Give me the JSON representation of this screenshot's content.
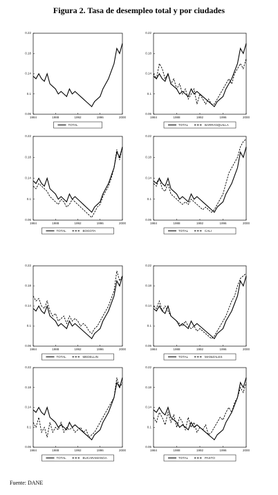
{
  "title": "Figura 2. Tasa de desempleo total y por ciudades",
  "source": "Fuente: DANE",
  "chart_data": [
    {
      "type": "line",
      "x": [
        1984,
        1984.5,
        1985,
        1985.5,
        1986,
        1986.5,
        1987,
        1987.5,
        1988,
        1988.5,
        1989,
        1989.5,
        1990,
        1990.5,
        1991,
        1991.5,
        1992,
        1992.5,
        1993,
        1993.5,
        1994,
        1994.5,
        1995,
        1995.5,
        1996,
        1996.5,
        1997,
        1997.5,
        1998,
        1998.5,
        1999,
        1999.5,
        2000
      ],
      "xlim": [
        1984,
        2000
      ],
      "xticks": [
        1984,
        1988,
        1992,
        1996,
        2000
      ],
      "ylim": [
        0.06,
        0.22
      ],
      "yticks": [
        0.06,
        0.1,
        0.14,
        0.18,
        0.22
      ],
      "series": [
        {
          "name": "TOTAL",
          "color": "#000000",
          "dash": false,
          "values": [
            0.135,
            0.13,
            0.14,
            0.13,
            0.125,
            0.14,
            0.12,
            0.115,
            0.11,
            0.1,
            0.105,
            0.1,
            0.095,
            0.11,
            0.1,
            0.105,
            0.1,
            0.095,
            0.09,
            0.085,
            0.08,
            0.075,
            0.085,
            0.09,
            0.095,
            0.11,
            0.12,
            0.13,
            0.145,
            0.16,
            0.19,
            0.18,
            0.2
          ]
        }
      ]
    },
    {
      "type": "line",
      "x": [
        1984,
        1984.5,
        1985,
        1985.5,
        1986,
        1986.5,
        1987,
        1987.5,
        1988,
        1988.5,
        1989,
        1989.5,
        1990,
        1990.5,
        1991,
        1991.5,
        1992,
        1992.5,
        1993,
        1993.5,
        1994,
        1994.5,
        1995,
        1995.5,
        1996,
        1996.5,
        1997,
        1997.5,
        1998,
        1998.5,
        1999,
        1999.5,
        2000
      ],
      "xlim": [
        1984,
        2000
      ],
      "xticks": [
        1984,
        1988,
        1992,
        1996,
        2000
      ],
      "ylim": [
        0.06,
        0.22
      ],
      "yticks": [
        0.06,
        0.1,
        0.14,
        0.18,
        0.22
      ],
      "series": [
        {
          "name": "TOTAL",
          "color": "#000000",
          "dash": false,
          "values": [
            0.135,
            0.13,
            0.14,
            0.13,
            0.125,
            0.14,
            0.12,
            0.115,
            0.11,
            0.1,
            0.105,
            0.1,
            0.095,
            0.11,
            0.1,
            0.105,
            0.1,
            0.095,
            0.09,
            0.085,
            0.08,
            0.075,
            0.085,
            0.09,
            0.095,
            0.11,
            0.12,
            0.13,
            0.145,
            0.16,
            0.19,
            0.18,
            0.2
          ]
        },
        {
          "name": "BARRANQUILLA",
          "color": "#000000",
          "dash": true,
          "values": [
            0.14,
            0.13,
            0.16,
            0.15,
            0.13,
            0.14,
            0.12,
            0.13,
            0.11,
            0.12,
            0.1,
            0.11,
            0.09,
            0.1,
            0.11,
            0.08,
            0.1,
            0.09,
            0.08,
            0.09,
            0.08,
            0.08,
            0.09,
            0.1,
            0.11,
            0.12,
            0.13,
            0.12,
            0.14,
            0.15,
            0.16,
            0.15,
            0.17
          ]
        }
      ]
    },
    {
      "type": "line",
      "x": [
        1984,
        1984.5,
        1985,
        1985.5,
        1986,
        1986.5,
        1987,
        1987.5,
        1988,
        1988.5,
        1989,
        1989.5,
        1990,
        1990.5,
        1991,
        1991.5,
        1992,
        1992.5,
        1993,
        1993.5,
        1994,
        1994.5,
        1995,
        1995.5,
        1996,
        1996.5,
        1997,
        1997.5,
        1998,
        1998.5,
        1999,
        1999.5,
        2000
      ],
      "xlim": [
        1984,
        2000
      ],
      "xticks": [
        1984,
        1988,
        1992,
        1996,
        2000
      ],
      "ylim": [
        0.06,
        0.22
      ],
      "yticks": [
        0.06,
        0.1,
        0.14,
        0.18,
        0.22
      ],
      "series": [
        {
          "name": "TOTAL",
          "color": "#000000",
          "dash": false,
          "values": [
            0.135,
            0.13,
            0.14,
            0.13,
            0.125,
            0.14,
            0.12,
            0.115,
            0.11,
            0.1,
            0.105,
            0.1,
            0.095,
            0.11,
            0.1,
            0.105,
            0.1,
            0.095,
            0.09,
            0.085,
            0.08,
            0.075,
            0.085,
            0.09,
            0.095,
            0.11,
            0.12,
            0.13,
            0.145,
            0.16,
            0.19,
            0.18,
            0.2
          ]
        },
        {
          "name": "BOGOTA",
          "color": "#000000",
          "dash": true,
          "values": [
            0.125,
            0.12,
            0.13,
            0.125,
            0.12,
            0.115,
            0.105,
            0.1,
            0.095,
            0.09,
            0.1,
            0.095,
            0.085,
            0.09,
            0.1,
            0.095,
            0.09,
            0.085,
            0.08,
            0.075,
            0.07,
            0.065,
            0.075,
            0.085,
            0.09,
            0.105,
            0.115,
            0.125,
            0.14,
            0.16,
            0.195,
            0.175,
            0.2
          ]
        }
      ]
    },
    {
      "type": "line",
      "x": [
        1984,
        1984.5,
        1985,
        1985.5,
        1986,
        1986.5,
        1987,
        1987.5,
        1988,
        1988.5,
        1989,
        1989.5,
        1990,
        1990.5,
        1991,
        1991.5,
        1992,
        1992.5,
        1993,
        1993.5,
        1994,
        1994.5,
        1995,
        1995.5,
        1996,
        1996.5,
        1997,
        1997.5,
        1998,
        1998.5,
        1999,
        1999.5,
        2000
      ],
      "xlim": [
        1984,
        2000
      ],
      "xticks": [
        1984,
        1988,
        1992,
        1996,
        2000
      ],
      "ylim": [
        0.06,
        0.22
      ],
      "yticks": [
        0.06,
        0.1,
        0.14,
        0.18,
        0.22
      ],
      "series": [
        {
          "name": "TOTAL",
          "color": "#000000",
          "dash": false,
          "values": [
            0.135,
            0.13,
            0.14,
            0.13,
            0.125,
            0.14,
            0.12,
            0.115,
            0.11,
            0.1,
            0.105,
            0.1,
            0.095,
            0.11,
            0.1,
            0.105,
            0.1,
            0.095,
            0.09,
            0.085,
            0.08,
            0.075,
            0.085,
            0.09,
            0.095,
            0.11,
            0.12,
            0.13,
            0.145,
            0.16,
            0.19,
            0.18,
            0.2
          ]
        },
        {
          "name": "CALI",
          "color": "#000000",
          "dash": true,
          "values": [
            0.13,
            0.125,
            0.14,
            0.12,
            0.115,
            0.13,
            0.11,
            0.105,
            0.1,
            0.095,
            0.09,
            0.095,
            0.09,
            0.1,
            0.095,
            0.09,
            0.085,
            0.08,
            0.085,
            0.08,
            0.075,
            0.08,
            0.09,
            0.1,
            0.11,
            0.13,
            0.15,
            0.16,
            0.17,
            0.18,
            0.2,
            0.21,
            0.215
          ]
        }
      ]
    },
    {
      "type": "line",
      "x": [
        1984,
        1984.5,
        1985,
        1985.5,
        1986,
        1986.5,
        1987,
        1987.5,
        1988,
        1988.5,
        1989,
        1989.5,
        1990,
        1990.5,
        1991,
        1991.5,
        1992,
        1992.5,
        1993,
        1993.5,
        1994,
        1994.5,
        1995,
        1995.5,
        1996,
        1996.5,
        1997,
        1997.5,
        1998,
        1998.5,
        1999,
        1999.5,
        2000
      ],
      "xlim": [
        1984,
        2000
      ],
      "xticks": [
        1984,
        1988,
        1992,
        1996,
        2000
      ],
      "ylim": [
        0.06,
        0.22
      ],
      "yticks": [
        0.06,
        0.1,
        0.14,
        0.18,
        0.22
      ],
      "series": [
        {
          "name": "TOTAL",
          "color": "#000000",
          "dash": false,
          "values": [
            0.135,
            0.13,
            0.14,
            0.13,
            0.125,
            0.14,
            0.12,
            0.115,
            0.11,
            0.1,
            0.105,
            0.1,
            0.095,
            0.11,
            0.1,
            0.105,
            0.1,
            0.095,
            0.09,
            0.085,
            0.08,
            0.075,
            0.085,
            0.09,
            0.095,
            0.11,
            0.12,
            0.13,
            0.145,
            0.16,
            0.19,
            0.18,
            0.2
          ]
        },
        {
          "name": "MEDELLIN",
          "color": "#000000",
          "dash": true,
          "values": [
            0.16,
            0.15,
            0.155,
            0.14,
            0.135,
            0.15,
            0.13,
            0.12,
            0.125,
            0.11,
            0.115,
            0.12,
            0.105,
            0.12,
            0.11,
            0.115,
            0.11,
            0.1,
            0.105,
            0.1,
            0.09,
            0.085,
            0.095,
            0.1,
            0.11,
            0.12,
            0.13,
            0.14,
            0.155,
            0.17,
            0.21,
            0.19,
            0.2
          ]
        }
      ]
    },
    {
      "type": "line",
      "x": [
        1984,
        1984.5,
        1985,
        1985.5,
        1986,
        1986.5,
        1987,
        1987.5,
        1988,
        1988.5,
        1989,
        1989.5,
        1990,
        1990.5,
        1991,
        1991.5,
        1992,
        1992.5,
        1993,
        1993.5,
        1994,
        1994.5,
        1995,
        1995.5,
        1996,
        1996.5,
        1997,
        1997.5,
        1998,
        1998.5,
        1999,
        1999.5,
        2000
      ],
      "xlim": [
        1984,
        2000
      ],
      "xticks": [
        1984,
        1988,
        1992,
        1996,
        2000
      ],
      "ylim": [
        0.06,
        0.22
      ],
      "yticks": [
        0.06,
        0.1,
        0.14,
        0.18,
        0.22
      ],
      "series": [
        {
          "name": "TOTAL",
          "color": "#000000",
          "dash": false,
          "values": [
            0.135,
            0.13,
            0.14,
            0.13,
            0.125,
            0.14,
            0.12,
            0.115,
            0.11,
            0.1,
            0.105,
            0.1,
            0.095,
            0.11,
            0.1,
            0.105,
            0.1,
            0.095,
            0.09,
            0.085,
            0.08,
            0.075,
            0.085,
            0.09,
            0.095,
            0.11,
            0.12,
            0.13,
            0.145,
            0.16,
            0.19,
            0.18,
            0.2
          ]
        },
        {
          "name": "MANIZALES",
          "color": "#000000",
          "dash": true,
          "values": [
            0.14,
            0.135,
            0.15,
            0.13,
            0.14,
            0.13,
            0.12,
            0.115,
            0.11,
            0.105,
            0.1,
            0.11,
            0.1,
            0.095,
            0.1,
            0.09,
            0.095,
            0.09,
            0.085,
            0.08,
            0.075,
            0.08,
            0.09,
            0.1,
            0.11,
            0.12,
            0.135,
            0.15,
            0.16,
            0.18,
            0.195,
            0.2,
            0.205
          ]
        }
      ]
    },
    {
      "type": "line",
      "x": [
        1984,
        1984.5,
        1985,
        1985.5,
        1986,
        1986.5,
        1987,
        1987.5,
        1988,
        1988.5,
        1989,
        1989.5,
        1990,
        1990.5,
        1991,
        1991.5,
        1992,
        1992.5,
        1993,
        1993.5,
        1994,
        1994.5,
        1995,
        1995.5,
        1996,
        1996.5,
        1997,
        1997.5,
        1998,
        1998.5,
        1999,
        1999.5,
        2000
      ],
      "xlim": [
        1984,
        2000
      ],
      "xticks": [
        1984,
        1988,
        1992,
        1996,
        2000
      ],
      "ylim": [
        0.06,
        0.22
      ],
      "yticks": [
        0.06,
        0.1,
        0.14,
        0.18,
        0.22
      ],
      "series": [
        {
          "name": "TOTAL",
          "color": "#000000",
          "dash": false,
          "values": [
            0.135,
            0.13,
            0.14,
            0.13,
            0.125,
            0.14,
            0.12,
            0.115,
            0.11,
            0.1,
            0.105,
            0.1,
            0.095,
            0.11,
            0.1,
            0.105,
            0.1,
            0.095,
            0.09,
            0.085,
            0.08,
            0.075,
            0.085,
            0.09,
            0.095,
            0.11,
            0.12,
            0.13,
            0.145,
            0.16,
            0.19,
            0.18,
            0.2
          ]
        },
        {
          "name": "BUCARAMANGA",
          "color": "#000000",
          "dash": true,
          "values": [
            0.11,
            0.1,
            0.12,
            0.09,
            0.1,
            0.08,
            0.11,
            0.09,
            0.1,
            0.095,
            0.11,
            0.09,
            0.1,
            0.095,
            0.1,
            0.09,
            0.095,
            0.1,
            0.09,
            0.095,
            0.08,
            0.085,
            0.09,
            0.1,
            0.11,
            0.12,
            0.13,
            0.14,
            0.15,
            0.16,
            0.2,
            0.18,
            0.19
          ]
        }
      ]
    },
    {
      "type": "line",
      "x": [
        1984,
        1984.5,
        1985,
        1985.5,
        1986,
        1986.5,
        1987,
        1987.5,
        1988,
        1988.5,
        1989,
        1989.5,
        1990,
        1990.5,
        1991,
        1991.5,
        1992,
        1992.5,
        1993,
        1993.5,
        1994,
        1994.5,
        1995,
        1995.5,
        1996,
        1996.5,
        1997,
        1997.5,
        1998,
        1998.5,
        1999,
        1999.5,
        2000
      ],
      "xlim": [
        1984,
        2000
      ],
      "xticks": [
        1984,
        1988,
        1992,
        1996,
        2000
      ],
      "ylim": [
        0.06,
        0.22
      ],
      "yticks": [
        0.06,
        0.1,
        0.14,
        0.18,
        0.22
      ],
      "series": [
        {
          "name": "TOTAL",
          "color": "#000000",
          "dash": false,
          "values": [
            0.135,
            0.13,
            0.14,
            0.13,
            0.125,
            0.14,
            0.12,
            0.115,
            0.11,
            0.1,
            0.105,
            0.1,
            0.095,
            0.11,
            0.1,
            0.105,
            0.1,
            0.095,
            0.09,
            0.085,
            0.08,
            0.075,
            0.085,
            0.09,
            0.095,
            0.11,
            0.12,
            0.13,
            0.145,
            0.16,
            0.19,
            0.18,
            0.2
          ]
        },
        {
          "name": "PASTO",
          "color": "#000000",
          "dash": true,
          "values": [
            0.12,
            0.11,
            0.13,
            0.12,
            0.105,
            0.13,
            0.11,
            0.125,
            0.1,
            0.12,
            0.11,
            0.095,
            0.12,
            0.1,
            0.11,
            0.09,
            0.1,
            0.095,
            0.105,
            0.085,
            0.09,
            0.1,
            0.11,
            0.12,
            0.115,
            0.13,
            0.14,
            0.13,
            0.15,
            0.16,
            0.18,
            0.17,
            0.19
          ]
        }
      ]
    }
  ]
}
